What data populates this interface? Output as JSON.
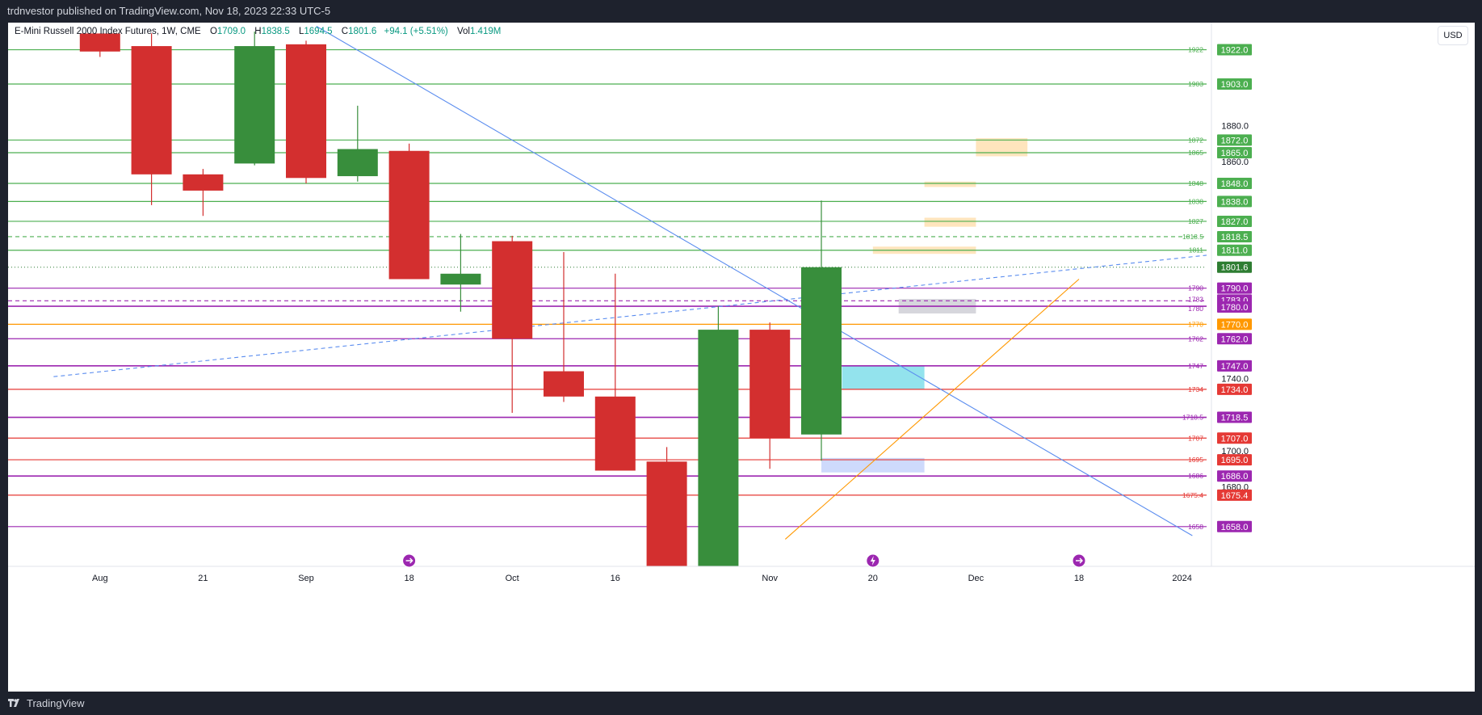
{
  "header": {
    "published": "trdnvestor published on TradingView.com, Nov 18, 2023 22:33 UTC-5"
  },
  "legend": {
    "symbol": "E-Mini Russell 2000 Index Futures, 1W, CME",
    "o_label": "O",
    "o_value": "1709.0",
    "h_label": "H",
    "h_value": "1838.5",
    "l_label": "L",
    "l_value": "1694.5",
    "c_label": "C",
    "c_value": "1801.6",
    "change": "+94.1 (+5.51%)",
    "vol_label": "Vol",
    "vol_value": "1.419M"
  },
  "currency": "USD",
  "footer": {
    "brand": "TradingView"
  },
  "colors": {
    "up": "#388e3c",
    "down": "#d32f2f",
    "green_level": "#4caf50",
    "red_level": "#e53935",
    "purple_level": "#9c27b0",
    "orange_level": "#ff9800",
    "trend_blue": "#5b8def",
    "current_price": "#2e7d32"
  },
  "chart_data": {
    "type": "candlestick",
    "timeframe": "1W",
    "x_ticks": [
      "Aug",
      "21",
      "Sep",
      "18",
      "Oct",
      "16",
      "Nov",
      "20",
      "Dec",
      "18",
      "2024"
    ],
    "candles": [
      {
        "o": 1931,
        "h": 1931,
        "l": 1918,
        "c": 1921
      },
      {
        "o": 1924,
        "h": 1931,
        "l": 1836,
        "c": 1853
      },
      {
        "o": 1853,
        "h": 1856,
        "l": 1830,
        "c": 1844
      },
      {
        "o": 1859,
        "h": 1932,
        "l": 1858,
        "c": 1924
      },
      {
        "o": 1925,
        "h": 1927,
        "l": 1848,
        "c": 1851
      },
      {
        "o": 1852,
        "h": 1891,
        "l": 1849,
        "c": 1867
      },
      {
        "o": 1866,
        "h": 1870,
        "l": 1795,
        "c": 1795
      },
      {
        "o": 1792,
        "h": 1820,
        "l": 1777,
        "c": 1798
      },
      {
        "o": 1816,
        "h": 1819,
        "l": 1721,
        "c": 1762
      },
      {
        "o": 1744,
        "h": 1810,
        "l": 1727,
        "c": 1730
      },
      {
        "o": 1730,
        "h": 1798,
        "l": 1689,
        "c": 1689
      },
      {
        "o": 1694,
        "h": 1702,
        "l": 1636,
        "c": 1636
      },
      {
        "o": 1636,
        "h": 1780,
        "l": 1636,
        "c": 1767
      },
      {
        "o": 1767,
        "h": 1771,
        "l": 1690,
        "c": 1707
      },
      {
        "o": 1709,
        "h": 1838.5,
        "l": 1694.5,
        "c": 1801.6
      }
    ],
    "levels": [
      {
        "price": 1922,
        "label": "1922",
        "axis": "1922.0",
        "kind": "green"
      },
      {
        "price": 1903,
        "label": "1903",
        "axis": "1903.0",
        "kind": "green"
      },
      {
        "price": 1872,
        "label": "1872",
        "axis": "1872.0",
        "kind": "green"
      },
      {
        "price": 1865,
        "label": "1865",
        "axis": "1865.0",
        "kind": "green"
      },
      {
        "price": 1848,
        "label": "1848",
        "axis": "1848.0",
        "kind": "green"
      },
      {
        "price": 1838,
        "label": "1838",
        "axis": "1838.0",
        "kind": "green"
      },
      {
        "price": 1827,
        "label": "1827",
        "axis": "1827.0",
        "kind": "green"
      },
      {
        "price": 1818.5,
        "label": "1818.5",
        "axis": "1818.5",
        "kind": "green",
        "dashed": true
      },
      {
        "price": 1811,
        "label": "1811",
        "axis": "1811.0",
        "kind": "green"
      },
      {
        "price": 1790,
        "label": "1790",
        "axis": "1790.0",
        "kind": "purple"
      },
      {
        "price": 1783,
        "label": "1783",
        "axis": "1783.0",
        "kind": "purple",
        "dashed": true
      },
      {
        "price": 1780,
        "label": "1780",
        "axis": "1780.0",
        "kind": "purple"
      },
      {
        "price": 1770,
        "label": "1770",
        "axis": "1770.0",
        "kind": "orange"
      },
      {
        "price": 1762,
        "label": "1762",
        "axis": "1762.0",
        "kind": "purple"
      },
      {
        "price": 1747,
        "label": "1747",
        "axis": "1747.0",
        "kind": "purple"
      },
      {
        "price": 1734,
        "label": "1734",
        "axis": "1734.0",
        "kind": "red"
      },
      {
        "price": 1718.5,
        "label": "1718.5",
        "axis": "1718.5",
        "kind": "purple"
      },
      {
        "price": 1707,
        "label": "1707",
        "axis": "1707.0",
        "kind": "red"
      },
      {
        "price": 1695,
        "label": "1695",
        "axis": "1695.0",
        "kind": "red"
      },
      {
        "price": 1686,
        "label": "1686",
        "axis": "1686.0",
        "kind": "purple"
      },
      {
        "price": 1675.4,
        "label": "1675.4",
        "axis": "1675.4",
        "kind": "red"
      },
      {
        "price": 1658,
        "label": "1658",
        "axis": "1658.0",
        "kind": "purple"
      }
    ],
    "current_price": {
      "price": 1801.6,
      "axis": "1801.6"
    },
    "axis_ticks": [
      {
        "price": 1880,
        "label": "1880.0"
      },
      {
        "price": 1860,
        "label": "1860.0"
      },
      {
        "price": 1740,
        "label": "1740.0"
      },
      {
        "price": 1700,
        "label": "1700.0"
      },
      {
        "price": 1680,
        "label": "1680.0"
      }
    ],
    "zones": [
      {
        "from_bar": 17.0,
        "to_bar": 18.0,
        "top": 1873,
        "bottom": 1863,
        "color": "#ffe0b2"
      },
      {
        "from_bar": 16.0,
        "to_bar": 17.0,
        "top": 1849,
        "bottom": 1846,
        "color": "#ffe0b2"
      },
      {
        "from_bar": 16.0,
        "to_bar": 17.0,
        "top": 1829,
        "bottom": 1824,
        "color": "#ffe0b2"
      },
      {
        "from_bar": 15.0,
        "to_bar": 17.0,
        "top": 1813,
        "bottom": 1809,
        "color": "#ffe0b2"
      },
      {
        "from_bar": 15.5,
        "to_bar": 17.0,
        "top": 1784,
        "bottom": 1776,
        "color": "#cfcfd6"
      },
      {
        "from_bar": 14.4,
        "to_bar": 16.0,
        "top": 1747,
        "bottom": 1734,
        "color": "#80deea"
      },
      {
        "from_bar": 14.0,
        "to_bar": 16.0,
        "top": 1696,
        "bottom": 1688,
        "color": "#c5d3fb"
      }
    ],
    "trendlines": [
      {
        "from": [
          4.2,
          1935
        ],
        "to": [
          21.2,
          1653
        ],
        "color": "#5b8def",
        "dashed": false
      },
      {
        "from": [
          -0.9,
          1741
        ],
        "to": [
          22.4,
          1811
        ],
        "color": "#5b8def",
        "dashed": true
      },
      {
        "from": [
          13.3,
          1651
        ],
        "to": [
          19.0,
          1795
        ],
        "color": "#ff9800",
        "dashed": false
      }
    ],
    "event_markers": [
      {
        "bar": 6.0,
        "kind": "dividend"
      },
      {
        "bar": 15.0,
        "kind": "earnings"
      },
      {
        "bar": 19.0,
        "kind": "dividend"
      }
    ],
    "y_range": [
      1636,
      1937
    ]
  }
}
